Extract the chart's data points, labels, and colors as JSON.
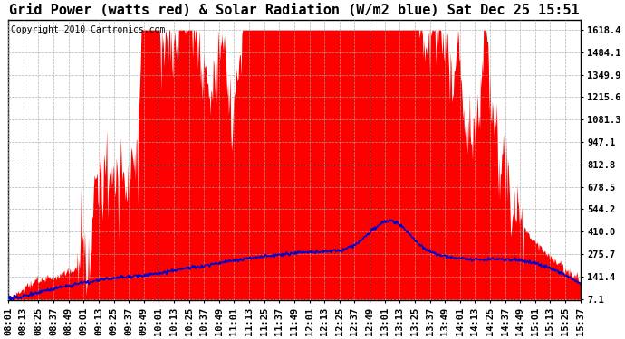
{
  "title": "Grid Power (watts red) & Solar Radiation (W/m2 blue) Sat Dec 25 15:51",
  "copyright": "Copyright 2010 Cartronics.com",
  "background_color": "#ffffff",
  "plot_bg_color": "#ffffff",
  "grid_color": "#aaaaaa",
  "red_color": "#ff0000",
  "blue_color": "#0000cc",
  "yticks": [
    7.1,
    141.4,
    275.7,
    410.0,
    544.2,
    678.5,
    812.8,
    947.1,
    1081.3,
    1215.6,
    1349.9,
    1484.1,
    1618.4
  ],
  "ylim": [
    0,
    1680
  ],
  "xtick_labels": [
    "08:01",
    "08:13",
    "08:25",
    "08:37",
    "08:49",
    "09:01",
    "09:13",
    "09:25",
    "09:37",
    "09:49",
    "10:01",
    "10:13",
    "10:25",
    "10:37",
    "10:49",
    "11:01",
    "11:13",
    "11:25",
    "11:37",
    "11:49",
    "12:01",
    "12:13",
    "12:25",
    "12:37",
    "12:49",
    "13:01",
    "13:13",
    "13:25",
    "13:37",
    "13:49",
    "14:01",
    "14:13",
    "14:25",
    "14:37",
    "14:49",
    "15:01",
    "15:13",
    "15:25",
    "15:37"
  ],
  "title_fontsize": 11,
  "copyright_fontsize": 7,
  "tick_fontsize": 7.5
}
